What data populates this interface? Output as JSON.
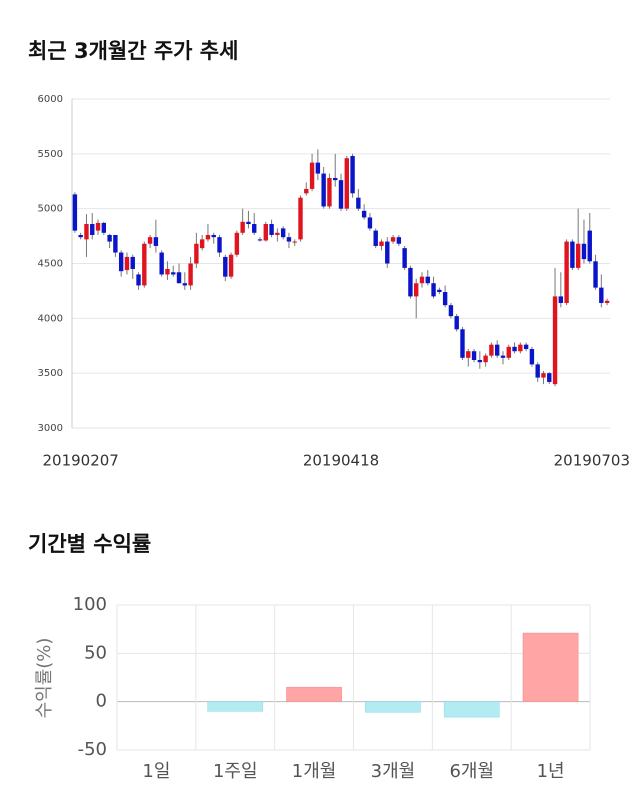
{
  "chart_data": [
    {
      "type": "candlestick",
      "title": "최근 3개월간 주가 추세",
      "categories": [
        null,
        "20190207",
        null,
        null,
        null,
        null,
        null,
        null,
        null,
        null,
        null,
        null,
        null,
        null,
        null,
        null,
        null,
        null,
        null,
        null,
        null,
        null,
        null,
        null,
        null,
        null,
        null,
        null,
        null,
        null,
        null,
        null,
        null,
        null,
        null,
        null,
        null,
        null,
        null,
        null,
        null,
        null,
        null,
        null,
        null,
        null,
        "20190418",
        null,
        null,
        null,
        null,
        null,
        null,
        null,
        null,
        null,
        null,
        null,
        null,
        null,
        null,
        null,
        null,
        null,
        null,
        null,
        null,
        null,
        null,
        null,
        null,
        null,
        null,
        null,
        null,
        null,
        null,
        null,
        null,
        null,
        null,
        null,
        null,
        null,
        null,
        null,
        null,
        null,
        null,
        null,
        null,
        null,
        "20190703"
      ],
      "ohlc": [
        [
          5130,
          5150,
          4780,
          4800
        ],
        [
          4760,
          4780,
          4720,
          4740
        ],
        [
          4720,
          4950,
          4560,
          4860
        ],
        [
          4860,
          4960,
          4720,
          4760
        ],
        [
          4800,
          4900,
          4760,
          4870
        ],
        [
          4870,
          4880,
          4760,
          4780
        ],
        [
          4760,
          4770,
          4640,
          4700
        ],
        [
          4760,
          4760,
          4560,
          4600
        ],
        [
          4600,
          4620,
          4380,
          4430
        ],
        [
          4440,
          4600,
          4400,
          4560
        ],
        [
          4560,
          4580,
          4360,
          4450
        ],
        [
          4400,
          4420,
          4260,
          4300
        ],
        [
          4300,
          4700,
          4280,
          4680
        ],
        [
          4680,
          4760,
          4640,
          4740
        ],
        [
          4740,
          4900,
          4600,
          4660
        ],
        [
          4600,
          4620,
          4380,
          4400
        ],
        [
          4400,
          4520,
          4350,
          4450
        ],
        [
          4420,
          4480,
          4380,
          4400
        ],
        [
          4420,
          4500,
          4320,
          4320
        ],
        [
          4320,
          4420,
          4260,
          4300
        ],
        [
          4300,
          4560,
          4260,
          4500
        ],
        [
          4500,
          4780,
          4460,
          4680
        ],
        [
          4640,
          4760,
          4620,
          4720
        ],
        [
          4720,
          4860,
          4700,
          4760
        ],
        [
          4760,
          4780,
          4680,
          4740
        ],
        [
          4740,
          4760,
          4560,
          4600
        ],
        [
          4560,
          4580,
          4340,
          4380
        ],
        [
          4380,
          4600,
          4360,
          4580
        ],
        [
          4580,
          4800,
          4560,
          4780
        ],
        [
          4780,
          5000,
          4760,
          4880
        ],
        [
          4880,
          4980,
          4820,
          4860
        ],
        [
          4860,
          4960,
          4760,
          4780
        ],
        [
          4720,
          4740,
          4700,
          4710
        ],
        [
          4710,
          4880,
          4700,
          4860
        ],
        [
          4860,
          4900,
          4740,
          4760
        ],
        [
          4760,
          4820,
          4700,
          4780
        ],
        [
          4820,
          4840,
          4720,
          4740
        ],
        [
          4740,
          4780,
          4640,
          4700
        ],
        [
          4700,
          4720,
          4660,
          4700
        ],
        [
          4720,
          5120,
          4700,
          5100
        ],
        [
          5140,
          5240,
          5120,
          5180
        ],
        [
          5180,
          5500,
          5160,
          5420
        ],
        [
          5420,
          5540,
          5260,
          5320
        ],
        [
          5320,
          5380,
          5000,
          5020
        ],
        [
          5020,
          5320,
          5000,
          5280
        ],
        [
          5280,
          5500,
          5200,
          5260
        ],
        [
          5260,
          5320,
          4980,
          5000
        ],
        [
          5000,
          5480,
          4980,
          5460
        ],
        [
          5480,
          5500,
          5100,
          5140
        ],
        [
          5100,
          5180,
          4980,
          5000
        ],
        [
          4980,
          5040,
          4900,
          4920
        ],
        [
          4920,
          4960,
          4800,
          4820
        ],
        [
          4800,
          4820,
          4640,
          4660
        ],
        [
          4660,
          4720,
          4620,
          4700
        ],
        [
          4700,
          4740,
          4460,
          4500
        ],
        [
          4700,
          4760,
          4680,
          4740
        ],
        [
          4740,
          4760,
          4660,
          4680
        ],
        [
          4640,
          4660,
          4440,
          4460
        ],
        [
          4460,
          4480,
          4180,
          4200
        ],
        [
          4200,
          4360,
          4000,
          4320
        ],
        [
          4320,
          4420,
          4280,
          4380
        ],
        [
          4380,
          4440,
          4300,
          4320
        ],
        [
          4320,
          4380,
          4180,
          4200
        ],
        [
          4260,
          4280,
          4220,
          4240
        ],
        [
          4240,
          4300,
          4100,
          4120
        ],
        [
          4120,
          4140,
          4000,
          4020
        ],
        [
          4020,
          4040,
          3880,
          3900
        ],
        [
          3900,
          3920,
          3620,
          3640
        ],
        [
          3640,
          3720,
          3560,
          3700
        ],
        [
          3700,
          3720,
          3600,
          3620
        ],
        [
          3620,
          3700,
          3540,
          3600
        ],
        [
          3600,
          3680,
          3560,
          3660
        ],
        [
          3660,
          3780,
          3640,
          3760
        ],
        [
          3760,
          3800,
          3640,
          3660
        ],
        [
          3660,
          3700,
          3580,
          3640
        ],
        [
          3640,
          3760,
          3620,
          3740
        ],
        [
          3740,
          3780,
          3680,
          3700
        ],
        [
          3700,
          3780,
          3680,
          3760
        ],
        [
          3760,
          3780,
          3700,
          3720
        ],
        [
          3720,
          3740,
          3560,
          3580
        ],
        [
          3580,
          3600,
          3420,
          3460
        ],
        [
          3460,
          3520,
          3400,
          3500
        ],
        [
          3500,
          3510,
          3400,
          3420
        ],
        [
          3400,
          4460,
          3380,
          4200
        ],
        [
          4200,
          4420,
          4100,
          4140
        ],
        [
          4140,
          4720,
          4120,
          4700
        ],
        [
          4700,
          4720,
          4440,
          4460
        ],
        [
          4460,
          5000,
          4440,
          4680
        ],
        [
          4680,
          4900,
          4500,
          4540
        ],
        [
          4800,
          4960,
          4500,
          4520
        ],
        [
          4520,
          4580,
          4260,
          4280
        ],
        [
          4280,
          4400,
          4100,
          4140
        ],
        [
          4140,
          4180,
          4120,
          4160
        ]
      ],
      "up_color": "#e0141e",
      "down_color": "#0a14c8",
      "ylim": [
        3000,
        6000
      ],
      "yticks": [
        3000,
        3500,
        4000,
        4500,
        5000,
        5500,
        6000
      ],
      "grid": true
    },
    {
      "type": "bar",
      "title": "기간별 수익률",
      "y_label": "수익률(%)",
      "categories": [
        "1일",
        "1주일",
        "1개월",
        "3개월",
        "6개월",
        "1년"
      ],
      "values": [
        0,
        -10,
        15,
        -11,
        -16,
        71
      ],
      "positive_color": "#ffa5a5",
      "negative_color": "#b2ebf2",
      "ylim": [
        -50,
        100
      ],
      "yticks": [
        -50,
        0,
        50,
        100
      ],
      "grid": true
    }
  ]
}
